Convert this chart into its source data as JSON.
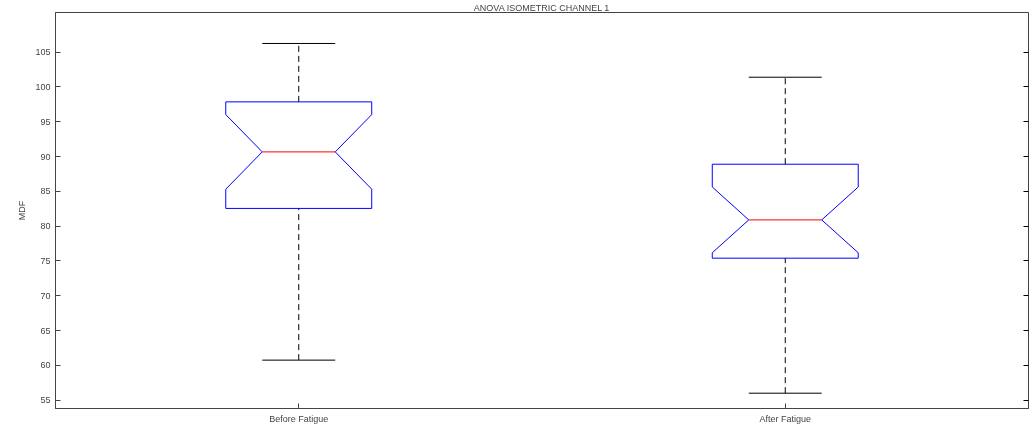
{
  "chart_data": {
    "type": "box",
    "title": "ANOVA ISOMETRIC CHANNEL 1",
    "ylabel": "MDF",
    "categories": [
      "Before Fatigue",
      "After Fatigue"
    ],
    "series": [
      {
        "color": "#0000ff",
        "boxes": [
          {
            "low": 60.75,
            "q1": 82.55,
            "median": 90.67,
            "q3": 97.86,
            "high": 106.25
          },
          {
            "low": 56.0,
            "q1": 75.4,
            "median": 80.9,
            "q3": 88.9,
            "high": 101.4
          }
        ]
      }
    ],
    "ylim": [
      53.8,
      110.7
    ],
    "yticks": [
      55,
      60,
      65,
      70,
      75,
      80,
      85,
      90,
      95,
      100,
      105
    ],
    "grid": false
  }
}
